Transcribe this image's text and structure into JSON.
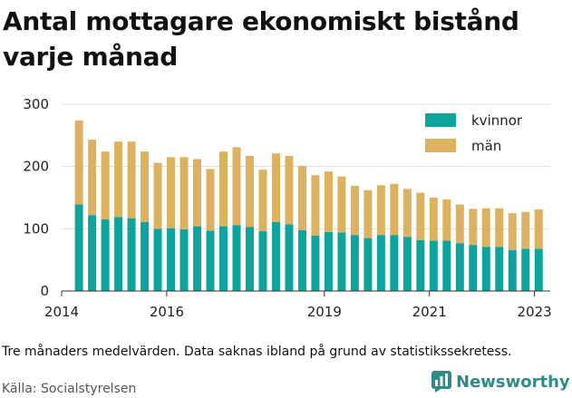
{
  "title": "Antal mottagare ekonomiskt bistånd varje månad",
  "caption": "Tre månaders medelvärden. Data saknas ibland på grund av statistikssekretess.",
  "source": "Källa: Socialstyrelsen",
  "brand": {
    "name": "Newsworthy",
    "icon": "bar-chart-logo-icon"
  },
  "colors": {
    "kvinnor": "#0ea39c",
    "man": "#dcb160",
    "grid": "#dddddd",
    "axis": "#333333"
  },
  "chart_data": {
    "type": "bar",
    "stacked": true,
    "ylim": [
      0,
      300
    ],
    "yticks": [
      0,
      100,
      200,
      300
    ],
    "xlim": [
      2014,
      2023.3
    ],
    "xticks": [
      2014,
      2016,
      2019,
      2021,
      2023
    ],
    "legend_position": "top-right",
    "grid": true,
    "series": [
      {
        "name": "kvinnor",
        "x": [
          2014.33,
          2014.58,
          2014.83,
          2015.08,
          2015.33,
          2015.58,
          2015.83,
          2016.08,
          2016.33,
          2016.58,
          2016.83,
          2017.08,
          2017.33,
          2017.58,
          2017.83,
          2018.08,
          2018.33,
          2018.58,
          2018.83,
          2019.08,
          2019.33,
          2019.58,
          2019.83,
          2020.08,
          2020.33,
          2020.58,
          2020.83,
          2021.08,
          2021.33,
          2021.58,
          2021.83,
          2022.08,
          2022.33,
          2022.58,
          2022.83,
          2023.08
        ],
        "values": [
          139,
          122,
          115,
          119,
          117,
          111,
          100,
          101,
          99,
          104,
          97,
          104,
          106,
          103,
          96,
          111,
          107,
          98,
          89,
          95,
          94,
          90,
          85,
          90,
          90,
          87,
          82,
          81,
          81,
          77,
          74,
          71,
          71,
          66,
          68,
          68
        ]
      },
      {
        "name": "män",
        "x": [
          2014.33,
          2014.58,
          2014.83,
          2015.08,
          2015.33,
          2015.58,
          2015.83,
          2016.08,
          2016.33,
          2016.58,
          2016.83,
          2017.08,
          2017.33,
          2017.58,
          2017.83,
          2018.08,
          2018.33,
          2018.58,
          2018.83,
          2019.08,
          2019.33,
          2019.58,
          2019.83,
          2020.08,
          2020.33,
          2020.58,
          2020.83,
          2021.08,
          2021.33,
          2021.58,
          2021.83,
          2022.08,
          2022.33,
          2022.58,
          2022.83,
          2023.08
        ],
        "values": [
          135,
          121,
          109,
          121,
          123,
          113,
          106,
          114,
          116,
          108,
          99,
          120,
          125,
          114,
          99,
          110,
          110,
          103,
          97,
          97,
          90,
          79,
          77,
          80,
          82,
          77,
          76,
          69,
          66,
          62,
          58,
          62,
          62,
          59,
          59,
          63
        ]
      }
    ]
  }
}
